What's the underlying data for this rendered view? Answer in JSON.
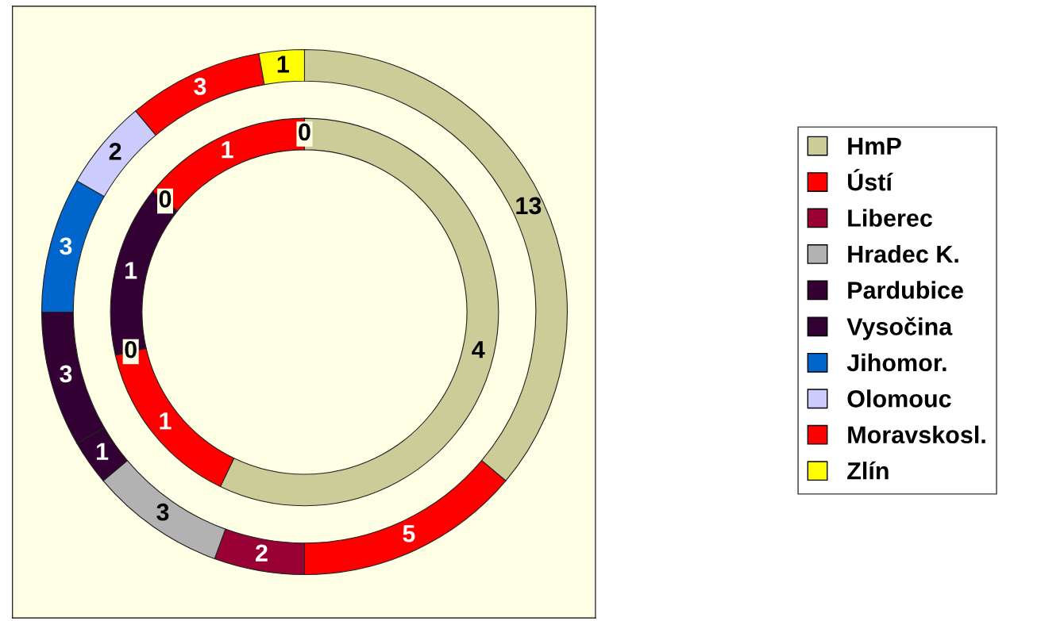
{
  "chart_data": {
    "type": "donut",
    "categories": [
      "HmP",
      "Ústí",
      "Liberec",
      "Hradec K.",
      "Pardubice",
      "Vysočina",
      "Jihomor.",
      "Olomouc",
      "Moravskosl.",
      "Zlín"
    ],
    "colors": [
      "#cccc99",
      "#ff0000",
      "#990033",
      "#b2b2b2",
      "#330033",
      "#330033",
      "#0066cc",
      "#ccccff",
      "#ff0000",
      "#ffff00"
    ],
    "series": [
      {
        "values": [
          4,
          1,
          0,
          0,
          1,
          0,
          0,
          0,
          1,
          0
        ],
        "value_labels": [
          "4",
          "1",
          "0",
          null,
          "1",
          "0",
          null,
          null,
          "1",
          "0"
        ]
      },
      {
        "values": [
          13,
          5,
          2,
          3,
          1,
          3,
          3,
          2,
          3,
          1
        ]
      }
    ],
    "data_labels": true,
    "legend": "right"
  }
}
